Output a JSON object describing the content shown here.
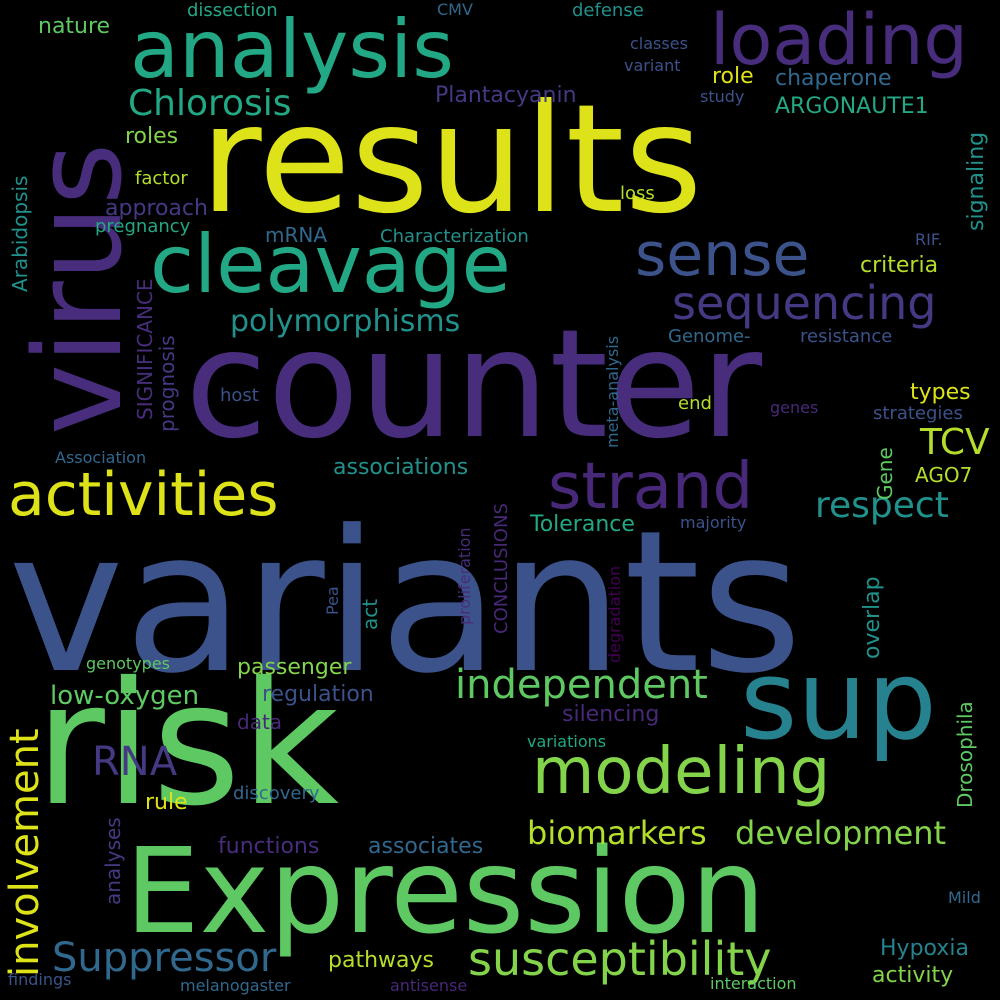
{
  "background": "#000000",
  "palette": {
    "yellow": "#dde318",
    "lime": "#b5de2b",
    "green": "#5ec962",
    "lightgreen": "#84d44b",
    "teal": "#21918c",
    "cyan": "#26828e",
    "seagreen": "#22a884",
    "blue": "#3b528b",
    "steel": "#31688e",
    "indigo": "#443983",
    "purple": "#472d7b",
    "darkpurple": "#440154",
    "violet": "#482878"
  },
  "words": [
    {
      "text": "variants",
      "color": "#3b528b"
    },
    {
      "text": "counter",
      "color": "#472d7b"
    },
    {
      "text": "results",
      "color": "#dde318"
    },
    {
      "text": "risk",
      "color": "#5ec962"
    },
    {
      "text": "virus",
      "color": "#472d7b"
    },
    {
      "text": "Expression",
      "color": "#5ec962"
    },
    {
      "text": "analysis",
      "color": "#22a884"
    },
    {
      "text": "sup",
      "color": "#26828e"
    },
    {
      "text": "cleavage",
      "color": "#22a884"
    },
    {
      "text": "loading",
      "color": "#472d7b"
    },
    {
      "text": "activities",
      "color": "#dde318"
    },
    {
      "text": "strand",
      "color": "#482878"
    },
    {
      "text": "modeling",
      "color": "#84d44b"
    },
    {
      "text": "sense",
      "color": "#3b528b"
    },
    {
      "text": "sequencing",
      "color": "#443983"
    },
    {
      "text": "susceptibility",
      "color": "#84d44b"
    },
    {
      "text": "independent",
      "color": "#5ec962"
    },
    {
      "text": "involvement",
      "color": "#dde318"
    },
    {
      "text": "Suppressor",
      "color": "#31688e"
    },
    {
      "text": "biomarkers",
      "color": "#b5de2b"
    },
    {
      "text": "development",
      "color": "#84d44b"
    },
    {
      "text": "Chlorosis",
      "color": "#22a884"
    },
    {
      "text": "polymorphisms",
      "color": "#21918c"
    },
    {
      "text": "respect",
      "color": "#21918c"
    },
    {
      "text": "RNA",
      "color": "#443983"
    },
    {
      "text": "TCV",
      "color": "#b5de2b"
    },
    {
      "text": "Plantacyanin",
      "color": "#443983"
    },
    {
      "text": "ARGONAUTE1",
      "color": "#22a884"
    },
    {
      "text": "chaperone",
      "color": "#31688e"
    },
    {
      "text": "role",
      "color": "#dde318"
    },
    {
      "text": "roles",
      "color": "#84d44b"
    },
    {
      "text": "factor",
      "color": "#b5de2b"
    },
    {
      "text": "approach",
      "color": "#443983"
    },
    {
      "text": "pregnancy",
      "color": "#22a884"
    },
    {
      "text": "mRNA",
      "color": "#31688e"
    },
    {
      "text": "Characterization",
      "color": "#21918c"
    },
    {
      "text": "loss",
      "color": "#b5de2b"
    },
    {
      "text": "RIF.",
      "color": "#3b528b"
    },
    {
      "text": "criteria",
      "color": "#b5de2b"
    },
    {
      "text": "signaling",
      "color": "#21918c"
    },
    {
      "text": "Genome-",
      "color": "#31688e"
    },
    {
      "text": "resistance",
      "color": "#3b528b"
    },
    {
      "text": "types",
      "color": "#dde318"
    },
    {
      "text": "end",
      "color": "#b5de2b"
    },
    {
      "text": "genes",
      "color": "#482878"
    },
    {
      "text": "strategies",
      "color": "#3b528b"
    },
    {
      "text": "host",
      "color": "#3b528b"
    },
    {
      "text": "Association",
      "color": "#31688e"
    },
    {
      "text": "associations",
      "color": "#21918c"
    },
    {
      "text": "AGO7",
      "color": "#b5de2b"
    },
    {
      "text": "Tolerance",
      "color": "#22a884"
    },
    {
      "text": "majority",
      "color": "#3b528b"
    },
    {
      "text": "Gene",
      "color": "#5ec962"
    },
    {
      "text": "act",
      "color": "#21918c"
    },
    {
      "text": "Pea",
      "color": "#3b528b"
    },
    {
      "text": "overlap",
      "color": "#21918c"
    },
    {
      "text": "Drosophila",
      "color": "#5ec962"
    },
    {
      "text": "passenger",
      "color": "#84d44b"
    },
    {
      "text": "low-oxygen",
      "color": "#5ec962"
    },
    {
      "text": "regulation",
      "color": "#3b528b"
    },
    {
      "text": "genotypes",
      "color": "#5ec962"
    },
    {
      "text": "data",
      "color": "#482878"
    },
    {
      "text": "silencing",
      "color": "#482878"
    },
    {
      "text": "variations",
      "color": "#22a884"
    },
    {
      "text": "rule",
      "color": "#dde318"
    },
    {
      "text": "discovery",
      "color": "#31688e"
    },
    {
      "text": "analyses",
      "color": "#443983"
    },
    {
      "text": "functions",
      "color": "#472d7b"
    },
    {
      "text": "associates",
      "color": "#31688e"
    },
    {
      "text": "pathways",
      "color": "#b5de2b"
    },
    {
      "text": "Hypoxia",
      "color": "#26828e"
    },
    {
      "text": "activity",
      "color": "#84d44b"
    },
    {
      "text": "interaction",
      "color": "#5ec962"
    },
    {
      "text": "antisense",
      "color": "#482878"
    },
    {
      "text": "findings",
      "color": "#3b528b"
    },
    {
      "text": "melanogaster",
      "color": "#31688e"
    },
    {
      "text": "Mild",
      "color": "#31688e"
    },
    {
      "text": "Arabidopsis",
      "color": "#21918c"
    },
    {
      "text": "SIGNIFICANCE",
      "color": "#472d7b"
    },
    {
      "text": "prognosis",
      "color": "#443983"
    },
    {
      "text": "meta-analysis",
      "color": "#31688e"
    },
    {
      "text": "proliferation",
      "color": "#472d7b"
    },
    {
      "text": "CONCLUSIONS",
      "color": "#482878"
    },
    {
      "text": "degradation",
      "color": "#440154"
    },
    {
      "text": "nature",
      "color": "#5ec962"
    },
    {
      "text": "dissection",
      "color": "#22a884"
    },
    {
      "text": "CMV",
      "color": "#31688e"
    },
    {
      "text": "defense",
      "color": "#21918c"
    },
    {
      "text": "classes",
      "color": "#3b528b"
    },
    {
      "text": "variant",
      "color": "#3b528b"
    },
    {
      "text": "study",
      "color": "#3b528b"
    }
  ]
}
